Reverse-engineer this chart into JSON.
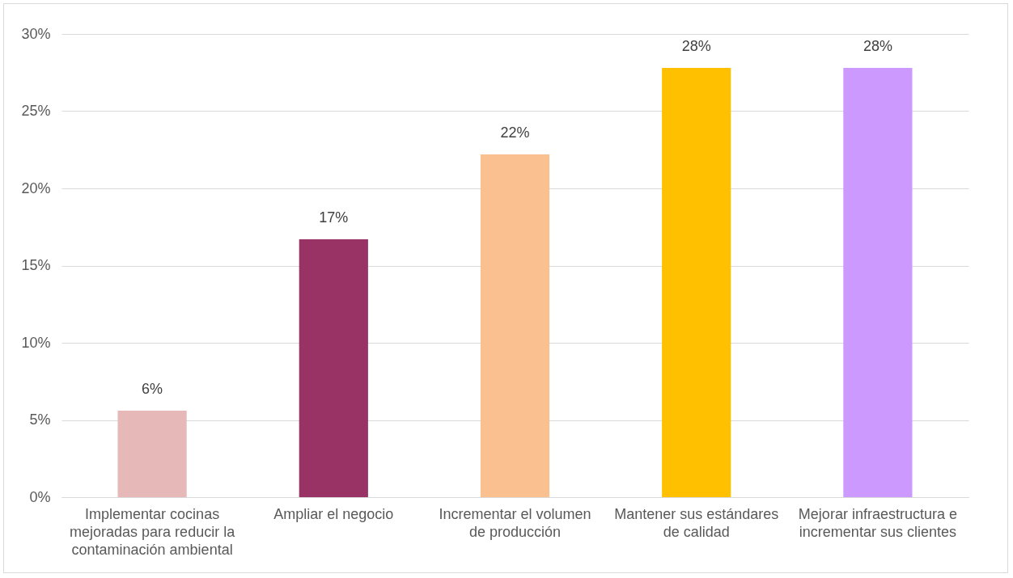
{
  "chart_data": {
    "type": "bar",
    "categories": [
      "Implementar cocinas mejoradas para reducir la contaminación ambiental",
      "Ampliar el negocio",
      "Incrementar el volumen de producción",
      "Mantener sus estándares de calidad",
      "Mejorar infraestructura e incrementar sus clientes"
    ],
    "values": [
      5.6,
      16.7,
      22.2,
      27.8,
      27.8
    ],
    "colors": [
      "#e6b9b8",
      "#993366",
      "#fac090",
      "#ffc000",
      "#cc99ff"
    ],
    "value_labels": [
      "6%",
      "17%",
      "22%",
      "28%",
      "28%"
    ],
    "ylim": [
      0,
      30
    ],
    "yticks": [
      {
        "value": 0,
        "label": "0%"
      },
      {
        "value": 5,
        "label": "5%"
      },
      {
        "value": 10,
        "label": "10%"
      },
      {
        "value": 15,
        "label": "15%"
      },
      {
        "value": 20,
        "label": "20%"
      },
      {
        "value": 25,
        "label": "25%"
      },
      {
        "value": 30,
        "label": "30%"
      }
    ],
    "grid": true
  }
}
